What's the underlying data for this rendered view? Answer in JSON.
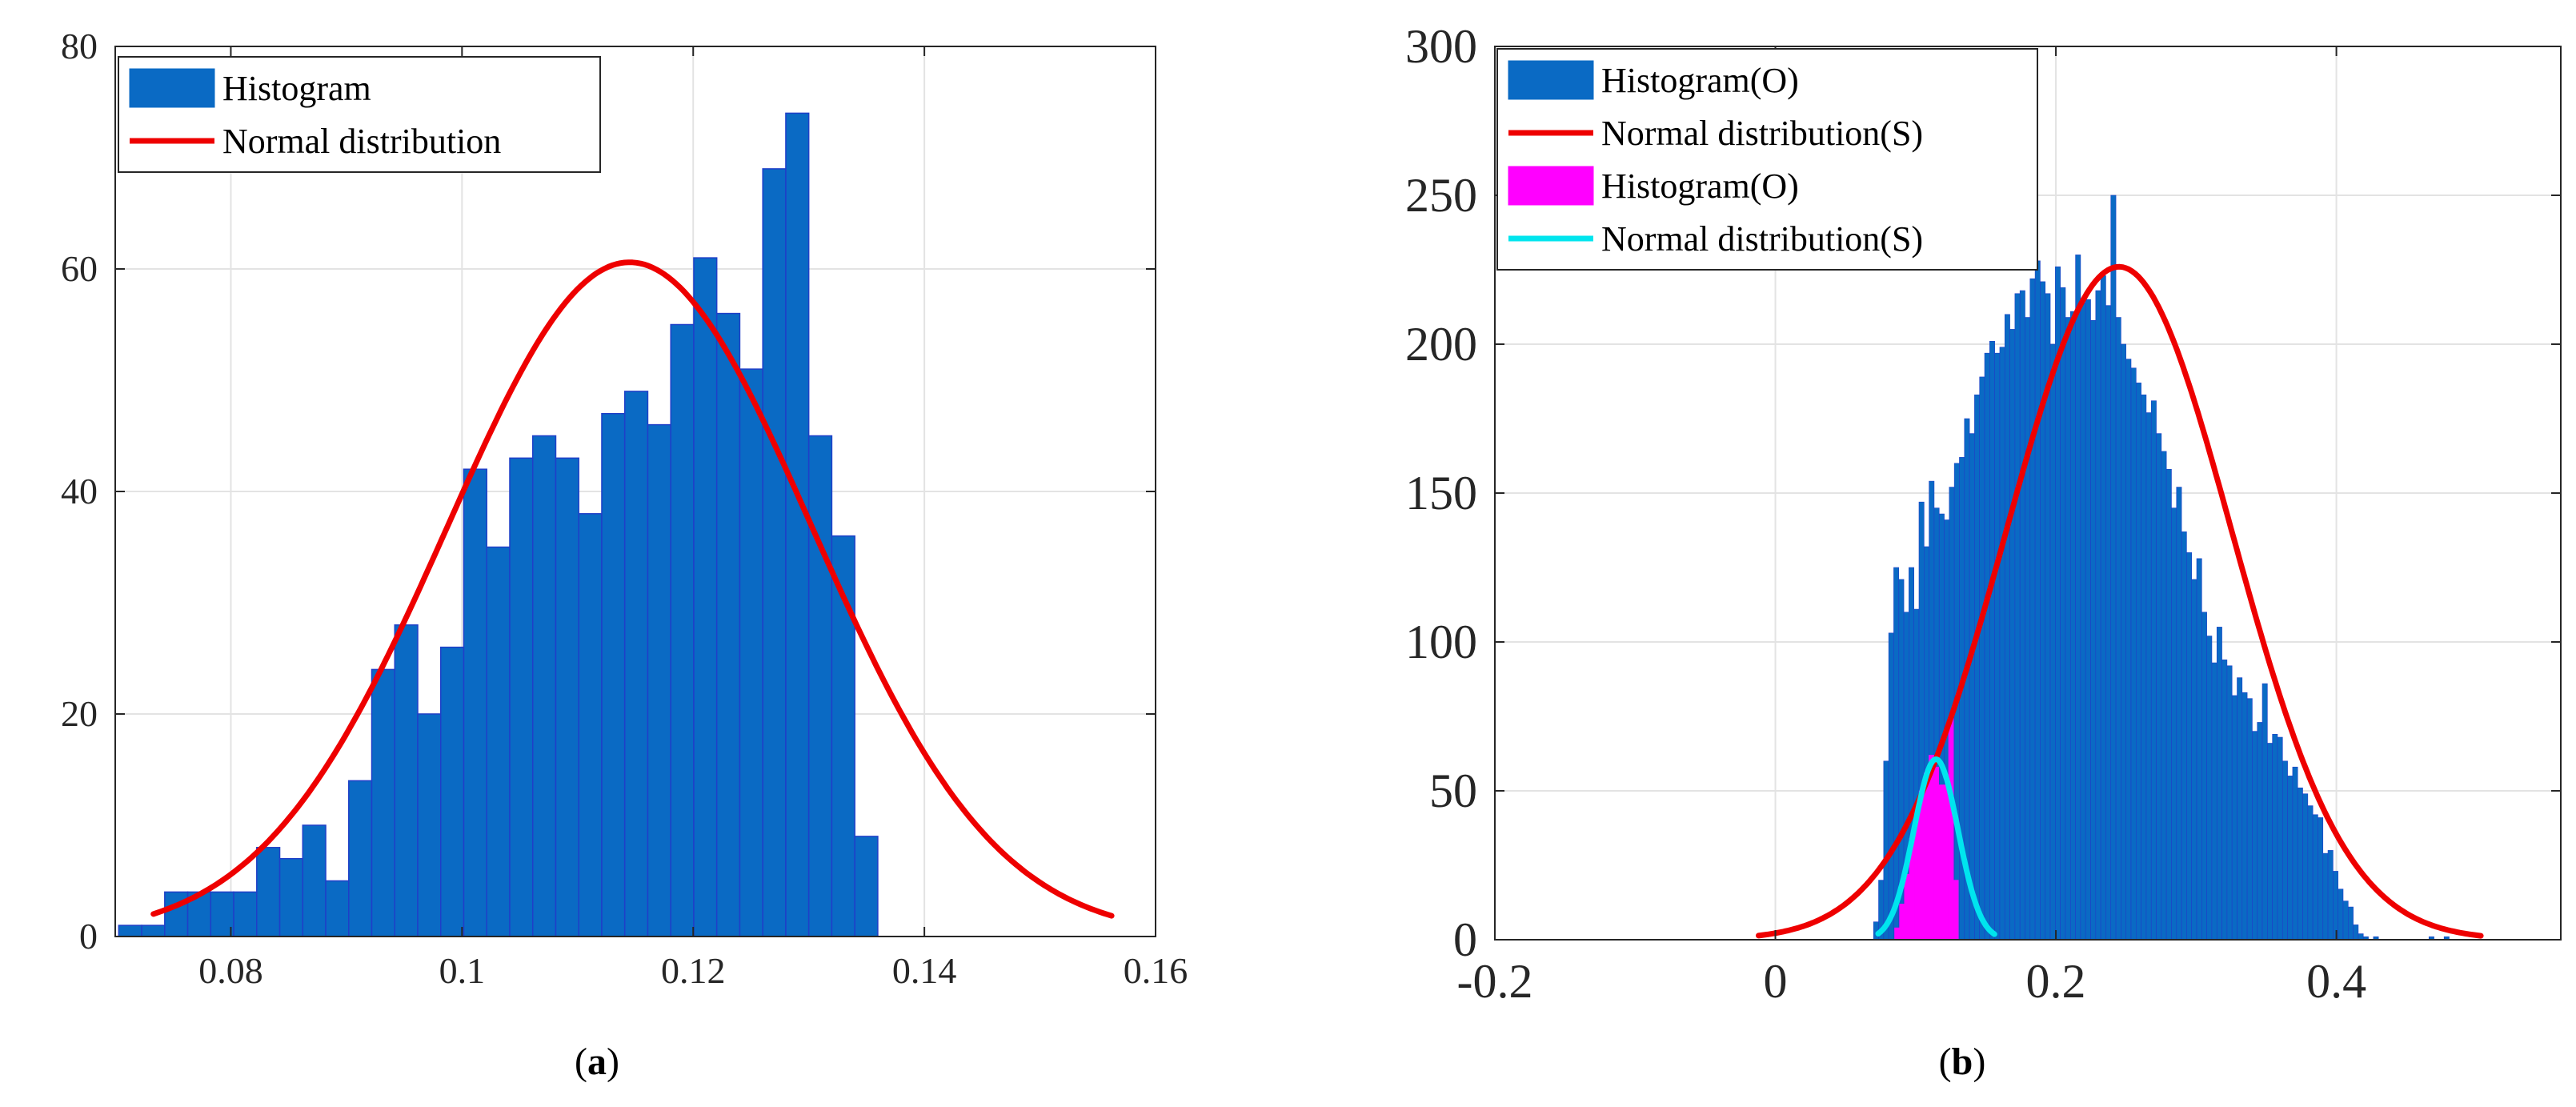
{
  "chart_data": [
    {
      "type": "bar",
      "panel": "a",
      "caption": {
        "open": "(",
        "letter": "a",
        "close": ")"
      },
      "xlim": [
        0.07,
        0.16
      ],
      "ylim": [
        0,
        80
      ],
      "xticks": [
        0.08,
        0.1,
        0.12,
        0.14,
        0.16
      ],
      "xtick_labels": [
        "0.08",
        "0.1",
        "0.12",
        "0.14",
        "0.16"
      ],
      "yticks": [
        0,
        20,
        40,
        60,
        80
      ],
      "ytick_labels": [
        "0",
        "20",
        "40",
        "60",
        "80"
      ],
      "grid": true,
      "legend_position": "top-left",
      "colors": {
        "hist": "#0a6ac4",
        "hist_edge": "#1f3fc8",
        "normal": "#ee0000"
      },
      "series": [
        {
          "name": "Histogram",
          "kind": "histogram",
          "bin_start": 0.0703,
          "bin_width": 0.00199,
          "values": [
            1,
            1,
            4,
            4,
            4,
            4,
            8,
            7,
            10,
            5,
            14,
            24,
            28,
            20,
            26,
            42,
            35,
            43,
            45,
            43,
            38,
            47,
            49,
            46,
            55,
            61,
            56,
            51,
            69,
            74,
            45,
            36,
            9
          ]
        },
        {
          "name": "Normal distribution",
          "kind": "normal",
          "mean": 0.1145,
          "sd": 0.0158,
          "peak": 60.6,
          "x_range": [
            0.0733,
            0.1562
          ]
        }
      ]
    },
    {
      "type": "bar",
      "panel": "b",
      "caption": {
        "open": "(",
        "letter": "b",
        "close": ")"
      },
      "xlim": [
        -0.2,
        0.56
      ],
      "ylim": [
        0,
        300
      ],
      "xticks": [
        -0.2,
        0,
        0.2,
        0.4
      ],
      "xtick_labels": [
        "-0.2",
        "0",
        "0.2",
        "0.4"
      ],
      "yticks": [
        0,
        50,
        100,
        150,
        200,
        250,
        300
      ],
      "ytick_labels": [
        "0",
        "50",
        "100",
        "150",
        "200",
        "250",
        "300"
      ],
      "grid": true,
      "legend_position": "top-left",
      "colors": {
        "hist": "#0a6ac4",
        "hist_edge": "#1f3fc8",
        "normal": "#ee0000",
        "hist2": "#ff00ff",
        "normal2": "#00e5ee"
      },
      "series": [
        {
          "name": "Histogram(O)",
          "kind": "histogram",
          "bin_start": 0.07,
          "bin_width": 0.0036,
          "values": [
            6,
            20,
            60,
            103,
            125,
            121,
            110,
            125,
            111,
            147,
            132,
            154,
            145,
            143,
            141,
            152,
            160,
            162,
            175,
            170,
            183,
            189,
            197,
            201,
            197,
            199,
            210,
            205,
            217,
            218,
            209,
            222,
            228,
            221,
            217,
            200,
            226,
            219,
            209,
            211,
            230,
            214,
            215,
            208,
            218,
            223,
            213,
            250,
            209,
            200,
            195,
            192,
            187,
            183,
            177,
            181,
            170,
            164,
            158,
            145,
            152,
            137,
            130,
            121,
            128,
            110,
            102,
            93,
            105,
            94,
            92,
            82,
            88,
            83,
            81,
            70,
            73,
            86,
            66,
            69,
            68,
            60,
            55,
            58,
            51,
            49,
            45,
            42,
            41,
            29,
            30,
            23,
            17,
            13,
            11,
            5,
            2,
            1,
            0,
            1,
            0,
            0,
            0,
            0,
            0,
            0,
            0,
            0,
            0,
            0,
            1,
            0,
            0,
            1
          ]
        },
        {
          "name": "Normal distribution(S)",
          "kind": "normal",
          "mean": 0.245,
          "sd": 0.0805,
          "peak": 226,
          "x_range": [
            -0.012,
            0.503
          ]
        },
        {
          "name": "Histogram(O)",
          "kind": "histogram",
          "bin_start": 0.085,
          "bin_width": 0.0035,
          "values": [
            4,
            12,
            22,
            34,
            45,
            50,
            56,
            62,
            58,
            52,
            52,
            75,
            20
          ]
        },
        {
          "name": "Normal distribution(S)",
          "kind": "normal",
          "mean": 0.1145,
          "sd": 0.0158,
          "peak": 60.6,
          "x_range": [
            0.0733,
            0.1562
          ]
        }
      ]
    }
  ]
}
